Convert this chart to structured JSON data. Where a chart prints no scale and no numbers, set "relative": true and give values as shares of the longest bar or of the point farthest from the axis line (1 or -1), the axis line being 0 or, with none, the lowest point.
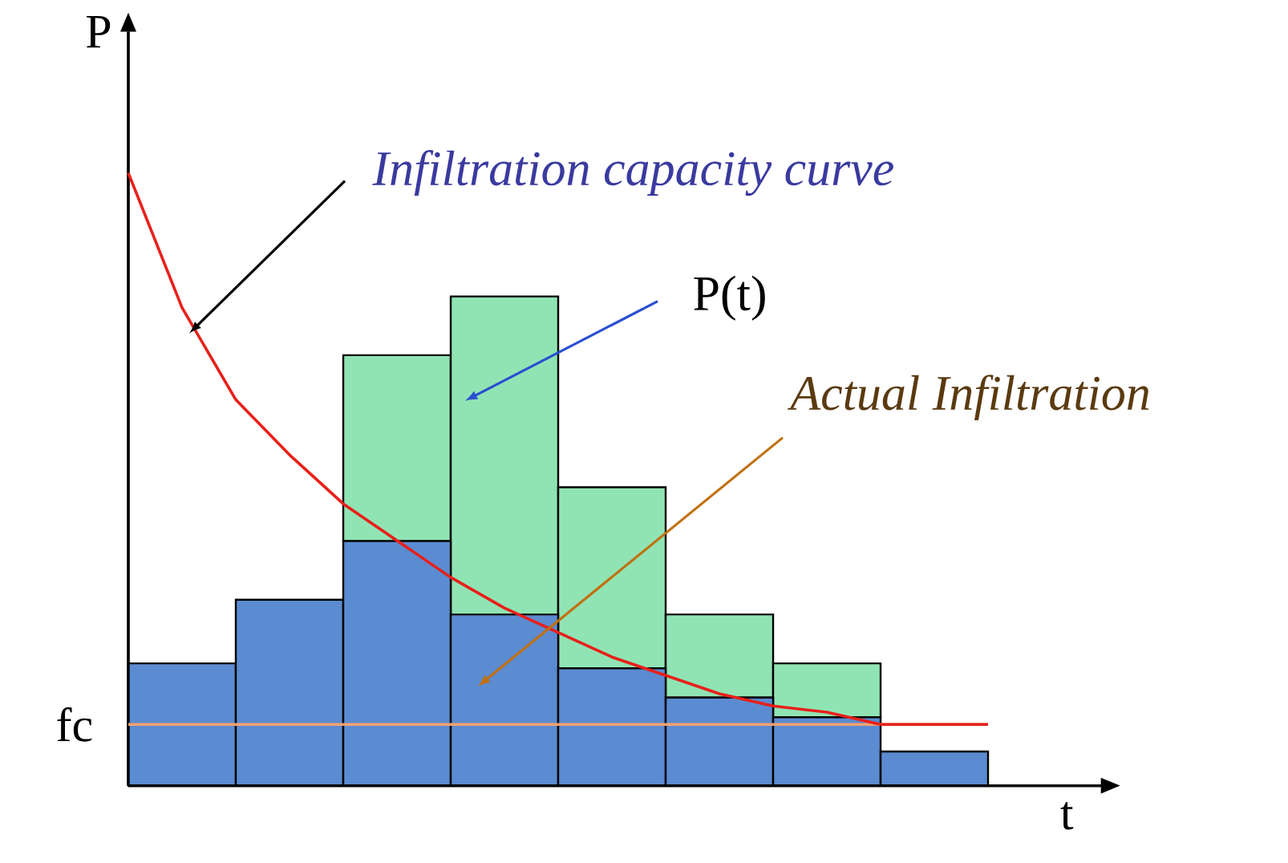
{
  "chart_data": [
    {
      "type": "bar",
      "stacked": true,
      "relative": true,
      "xlabel": "t",
      "ylabel": "P",
      "categories": [
        null,
        null,
        null,
        null,
        null,
        null,
        null,
        null
      ],
      "series": [
        {
          "color": "#5b8bd0",
          "values": [
            0.25,
            0.38,
            0.5,
            0.35,
            0.24,
            0.18,
            0.14,
            0.07
          ]
        },
        {
          "color": "#90e4b4",
          "values": [
            0,
            0,
            0.38,
            0.65,
            0.37,
            0.17,
            0.11,
            0
          ]
        }
      ],
      "annotations": [
        "Infiltration capacity curve",
        "P(t)",
        "Actual Infiltration"
      ]
    },
    {
      "type": "line",
      "relative": true,
      "categories": [
        null,
        null,
        null,
        null,
        null,
        null,
        null,
        null,
        null,
        null,
        null,
        null,
        null,
        null,
        null,
        null,
        null
      ],
      "series": [
        {
          "color": "#e8201a",
          "values": [
            1.0,
            0.78,
            0.63,
            0.54,
            0.46,
            0.4,
            0.34,
            0.29,
            0.25,
            0.21,
            0.18,
            0.15,
            0.13,
            0.12,
            0.1,
            0.1,
            0.1
          ]
        }
      ],
      "ref_lines": [
        {
          "axis": "y",
          "value": 0.1,
          "label": "fc",
          "color": "#f4a070"
        }
      ]
    }
  ]
}
